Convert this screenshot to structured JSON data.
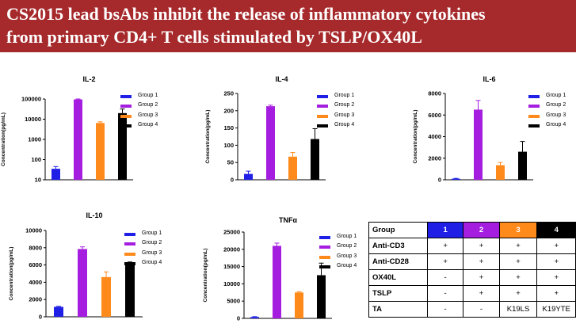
{
  "header": {
    "title_line1": "CS2015 lead bsAbs inhibit the release of inflammatory cytokines",
    "title_line2": "from primary CD4+ T cells stimulated by TSLP/OX40L",
    "background_color": "#a6292b"
  },
  "colors": {
    "Group 1": "#1f1fe6",
    "Group 2": "#a51ee0",
    "Group 3": "#ff8a1c",
    "Group 4": "#000000"
  },
  "chart_data": [
    {
      "id": "il2",
      "type": "bar",
      "title": "IL-2",
      "ylabel": "Concentration(pg/mL)",
      "xlabel": "",
      "scale": "log",
      "ylim": [
        10,
        100000
      ],
      "yticks": [
        10,
        100,
        1000,
        10000,
        100000
      ],
      "yticklabels": [
        "10",
        "100",
        "1000",
        "10000",
        "100000"
      ],
      "categories": [
        "Group 1",
        "Group 2",
        "Group 3",
        "Group 4"
      ],
      "values": [
        35,
        95000,
        6500,
        20000
      ],
      "errors": [
        10,
        5000,
        900,
        12000
      ],
      "legend": [
        "Group 1",
        "Group 2",
        "Group 3",
        "Group 4"
      ],
      "legend_position": "right"
    },
    {
      "id": "il4",
      "type": "bar",
      "title": "IL-4",
      "ylabel": "Concentration(pg/mL)",
      "xlabel": "",
      "scale": "linear",
      "ylim": [
        0,
        250
      ],
      "yticks": [
        0,
        50,
        100,
        150,
        200,
        250
      ],
      "yticklabels": [
        "0",
        "50",
        "100",
        "150",
        "200",
        "250"
      ],
      "categories": [
        "Group 1",
        "Group 2",
        "Group 3",
        "Group 4"
      ],
      "values": [
        17,
        213,
        67,
        118
      ],
      "errors": [
        8,
        3,
        12,
        30
      ],
      "legend": [
        "Group 1",
        "Group 2",
        "Group 3",
        "Group 4"
      ],
      "legend_position": "right"
    },
    {
      "id": "il6",
      "type": "bar",
      "title": "IL-6",
      "ylabel": "Concentration(pg/mL)",
      "xlabel": "",
      "scale": "linear",
      "ylim": [
        0,
        8000
      ],
      "yticks": [
        0,
        2000,
        4000,
        6000,
        8000
      ],
      "yticklabels": [
        "0",
        "2000",
        "4000",
        "6000",
        "8000"
      ],
      "categories": [
        "Group 1",
        "Group 2",
        "Group 3",
        "Group 4"
      ],
      "values": [
        100,
        6500,
        1350,
        2600
      ],
      "errors": [
        30,
        850,
        250,
        950
      ],
      "legend": [
        "Group 1",
        "Group 2",
        "Group 3",
        "Group 4"
      ],
      "legend_position": "right"
    },
    {
      "id": "il10",
      "type": "bar",
      "title": "IL-10",
      "ylabel": "Concentration(pg/mL)",
      "xlabel": "",
      "scale": "linear",
      "ylim": [
        0,
        10000
      ],
      "yticks": [
        0,
        2000,
        4000,
        6000,
        8000,
        10000
      ],
      "yticklabels": [
        "0",
        "2000",
        "4000",
        "6000",
        "8000",
        "10000"
      ],
      "categories": [
        "Group 1",
        "Group 2",
        "Group 3",
        "Group 4"
      ],
      "values": [
        1150,
        7850,
        4600,
        6000
      ],
      "errors": [
        60,
        250,
        600,
        350
      ],
      "legend": [
        "Group 1",
        "Group 2",
        "Group 3",
        "Group 4"
      ],
      "legend_position": "right"
    },
    {
      "id": "tnfa",
      "type": "bar",
      "title": "TNFα",
      "ylabel": "Concentration(pg/mL)",
      "xlabel": "",
      "scale": "linear",
      "ylim": [
        0,
        25000
      ],
      "yticks": [
        0,
        5000,
        10000,
        15000,
        20000,
        25000
      ],
      "yticklabels": [
        "0",
        "5000",
        "10000",
        "15000",
        "20000",
        "25000"
      ],
      "categories": [
        "Group 1",
        "Group 2",
        "Group 3",
        "Group 4"
      ],
      "values": [
        400,
        21000,
        7500,
        12500
      ],
      "errors": [
        100,
        800,
        200,
        3500
      ],
      "legend": [
        "Group 1",
        "Group 2",
        "Group 3",
        "Group 4"
      ],
      "legend_position": "right"
    }
  ],
  "group_table": {
    "header_label": "Group",
    "groups": [
      {
        "label": "1",
        "color": "#1f1fe6"
      },
      {
        "label": "2",
        "color": "#a51ee0"
      },
      {
        "label": "3",
        "color": "#ff8a1c"
      },
      {
        "label": "4",
        "color": "#000000"
      }
    ],
    "rows": [
      {
        "label": "Anti-CD3",
        "values": [
          "+",
          "+",
          "+",
          "+"
        ]
      },
      {
        "label": "Anti-CD28",
        "values": [
          "+",
          "+",
          "+",
          "+"
        ]
      },
      {
        "label": "OX40L",
        "values": [
          "-",
          "+",
          "+",
          "+"
        ]
      },
      {
        "label": "TSLP",
        "values": [
          "-",
          "+",
          "+",
          "+"
        ]
      },
      {
        "label": "TA",
        "values": [
          "-",
          "-",
          "K19LS",
          "K19YTE"
        ]
      }
    ]
  }
}
